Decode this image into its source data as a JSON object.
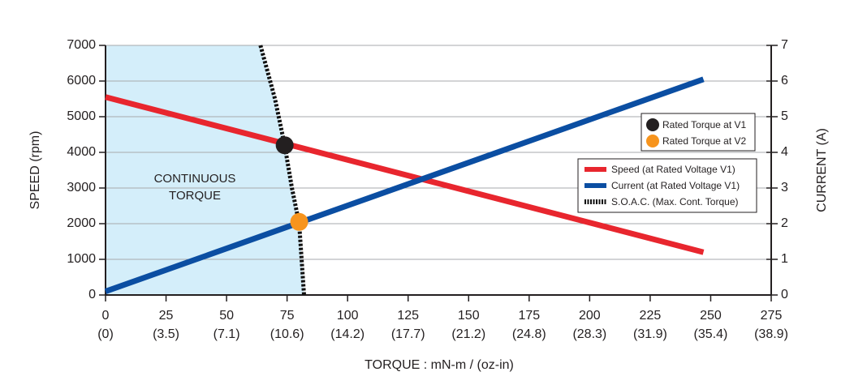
{
  "chart_data": {
    "type": "line",
    "xlabel": "TORQUE : mN-m / (oz-in)",
    "ylabel": "SPEED (rpm)",
    "y2label": "CURRENT (A)",
    "xlim": [
      0,
      275
    ],
    "xticks": [
      0,
      25,
      50,
      75,
      100,
      125,
      150,
      175,
      200,
      225,
      250,
      275
    ],
    "x_sublabels": [
      "(0)",
      "(3.5)",
      "(7.1)",
      "(10.6)",
      "(14.2)",
      "(17.7)",
      "(21.2)",
      "(24.8)",
      "(28.3)",
      "(31.9)",
      "(35.4)",
      "(38.9)"
    ],
    "ylim": [
      0,
      7000
    ],
    "yticks": [
      0,
      1000,
      2000,
      3000,
      4000,
      5000,
      6000,
      7000
    ],
    "y2lim": [
      0,
      7
    ],
    "y2ticks": [
      0,
      1,
      2,
      3,
      4,
      5,
      6,
      7
    ],
    "grid": true,
    "annotation": [
      "CONTINUOUS",
      "TORQUE"
    ],
    "series": [
      {
        "name": "Speed (at Rated Voltage V1)",
        "color": "#e8262e",
        "x": [
          0,
          247
        ],
        "values": [
          5550,
          1200
        ]
      },
      {
        "name": "Current (at Rated Voltage V1)",
        "color": "#0b4ea2",
        "x": [
          0,
          247
        ],
        "values": [
          0.1,
          6.05
        ],
        "axis": "y2"
      },
      {
        "name": "S.O.A.C. (Max. Cont. Torque)",
        "color": "#111111",
        "x": [
          64,
          70,
          74,
          77,
          80,
          81,
          82
        ],
        "values": [
          7000,
          5500,
          4200,
          3000,
          2000,
          1000,
          0
        ],
        "dashed": true,
        "fill_left": "#d4eefa"
      }
    ],
    "points": [
      {
        "name": "Rated Torque at V1",
        "color": "#231f20",
        "x": 74,
        "y": 4200
      },
      {
        "name": "Rated Torque at V2",
        "color": "#f7941d",
        "x": 80,
        "y": 2050
      }
    ]
  }
}
